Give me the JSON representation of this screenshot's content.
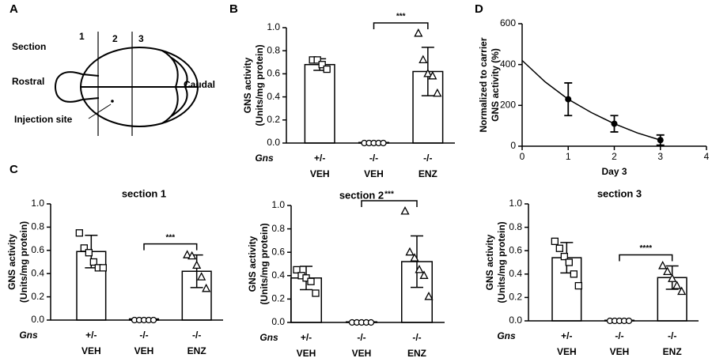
{
  "diagram": {
    "panel": "A",
    "section_label": "Section",
    "sections": [
      "1",
      "2",
      "3"
    ],
    "rostral": "Rostral",
    "caudal": "Caudal",
    "injection": "Injection site"
  },
  "chart_data": [
    {
      "type": "bar",
      "panel": "B",
      "ylabel": [
        "GNS activity",
        "(Units/mg protein)"
      ],
      "row_label": "Gns",
      "genotype": [
        "+/-",
        "-/-",
        "-/-"
      ],
      "categories": [
        "VEH",
        "VEH",
        "ENZ"
      ],
      "values": [
        0.68,
        0.005,
        0.62
      ],
      "errors": [
        0.05,
        0,
        0.21
      ],
      "points": [
        [
          0.72,
          0.72,
          0.68,
          0.64
        ],
        [
          0,
          0,
          0,
          0,
          0
        ],
        [
          0.95,
          0.72,
          0.6,
          0.58,
          0.43
        ]
      ],
      "markers": [
        "square",
        "circle",
        "triangle"
      ],
      "significance": {
        "label": "***",
        "pair": [
          1,
          2
        ]
      },
      "ylim": [
        0,
        1
      ],
      "yticks": [
        {
          "value": 0,
          "label": "0.0"
        },
        0.2,
        0.4,
        0.6,
        0.8,
        {
          "value": 1,
          "label": "1.0"
        }
      ]
    },
    {
      "type": "scatter",
      "panel": "D",
      "xlabel": "Day 3",
      "ylabel": [
        "Normalized to carrier",
        "GNS activity (%)"
      ],
      "x": [
        1,
        2,
        3
      ],
      "values": [
        230,
        110,
        30
      ],
      "errors": [
        80,
        40,
        25
      ],
      "fit": {
        "x": [
          0,
          0.5,
          1,
          1.5,
          2,
          2.5,
          3
        ],
        "values": [
          420,
          315,
          230,
          165,
          110,
          65,
          30
        ]
      },
      "xlim": [
        0,
        4
      ],
      "xticks": [
        0,
        1,
        2,
        3,
        4
      ],
      "ylim": [
        0,
        600
      ],
      "yticks": [
        0,
        200,
        400,
        600
      ]
    },
    {
      "type": "bar",
      "panel": "C",
      "title": "section 1",
      "ylabel": [
        "GNS activity",
        "(Units/mg protein)"
      ],
      "row_label": "Gns",
      "genotype": [
        "+/-",
        "-/-",
        "-/-"
      ],
      "categories": [
        "VEH",
        "VEH",
        "ENZ"
      ],
      "values": [
        0.59,
        0.01,
        0.42
      ],
      "errors": [
        0.14,
        0,
        0.14
      ],
      "points": [
        [
          0.75,
          0.62,
          0.58,
          0.5,
          0.45,
          0.45
        ],
        [
          0,
          0,
          0,
          0,
          0
        ],
        [
          0.56,
          0.55,
          0.47,
          0.37,
          0.27
        ]
      ],
      "markers": [
        "square",
        "circle",
        "triangle"
      ],
      "significance": {
        "label": "***",
        "pair": [
          1,
          2
        ]
      },
      "ylim": [
        0,
        1
      ],
      "yticks": [
        {
          "value": 0,
          "label": "0.0"
        },
        0.2,
        0.4,
        0.6,
        0.8,
        {
          "value": 1,
          "label": "1.0"
        }
      ]
    },
    {
      "type": "bar",
      "title": "section 2",
      "ylabel": [
        "GNS activity",
        "(Units/mg protein)"
      ],
      "row_label": "Gns",
      "genotype": [
        "+/-",
        "-/-",
        "-/-"
      ],
      "categories": [
        "VEH",
        "VEH",
        "ENZ"
      ],
      "values": [
        0.38,
        0.005,
        0.52
      ],
      "errors": [
        0.1,
        0,
        0.22
      ],
      "points": [
        [
          0.45,
          0.4,
          0.38,
          0.35,
          0.25
        ],
        [
          0,
          0,
          0,
          0,
          0
        ],
        [
          0.95,
          0.6,
          0.55,
          0.45,
          0.4,
          0.22
        ]
      ],
      "markers": [
        "square",
        "circle",
        "triangle"
      ],
      "significance": {
        "label": "***",
        "pair": [
          1,
          2
        ]
      },
      "ylim": [
        0,
        1
      ],
      "yticks": [
        {
          "value": 0,
          "label": "0.0"
        },
        0.2,
        0.4,
        0.6,
        0.8,
        {
          "value": 1,
          "label": "1.0"
        }
      ]
    },
    {
      "type": "bar",
      "title": "section 3",
      "ylabel": [
        "GNS activity",
        "(Units/mg protein)"
      ],
      "row_label": "Gns",
      "genotype": [
        "+/-",
        "-/-",
        "-/-"
      ],
      "categories": [
        "VEH",
        "VEH",
        "ENZ"
      ],
      "values": [
        0.54,
        0.005,
        0.37
      ],
      "errors": [
        0.13,
        0,
        0.1
      ],
      "points": [
        [
          0.68,
          0.62,
          0.55,
          0.5,
          0.4,
          0.3
        ],
        [
          0,
          0,
          0,
          0,
          0
        ],
        [
          0.47,
          0.42,
          0.36,
          0.3,
          0.25
        ]
      ],
      "markers": [
        "square",
        "circle",
        "triangle"
      ],
      "significance": {
        "label": "****",
        "pair": [
          1,
          2
        ]
      },
      "ylim": [
        0,
        1
      ],
      "yticks": [
        {
          "value": 0,
          "label": "0.0"
        },
        0.2,
        0.4,
        0.6,
        0.8,
        {
          "value": 1,
          "label": "1.0"
        }
      ]
    }
  ]
}
